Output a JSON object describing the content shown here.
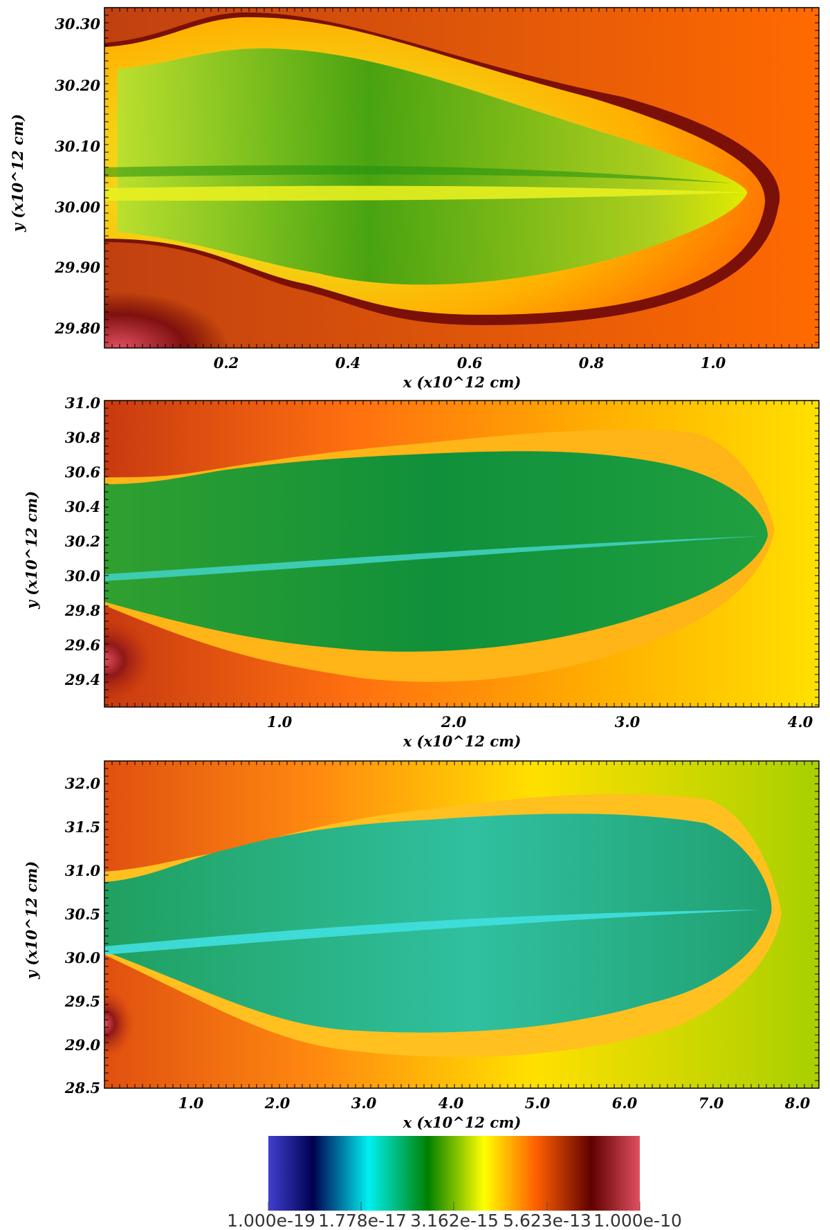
{
  "panels": [
    {
      "id": "panel1",
      "x_ticks": [
        "0.2",
        "0.4",
        "0.6",
        "0.8",
        "1.0"
      ],
      "y_ticks": [
        "30.30",
        "30.20",
        "30.10",
        "30.00",
        "29.90",
        "29.80"
      ],
      "x_label": "x  (x10^12 cm)",
      "y_label": "y  (x10^12 cm)"
    },
    {
      "id": "panel2",
      "x_ticks": [
        "1.0",
        "2.0",
        "3.0",
        "4.0"
      ],
      "y_ticks": [
        "31.0",
        "30.8",
        "30.6",
        "30.4",
        "30.2",
        "30.0",
        "29.8",
        "29.6",
        "29.4"
      ],
      "x_label": "x  (x10^12 cm)",
      "y_label": "y  (x10^12 cm)"
    },
    {
      "id": "panel3",
      "x_ticks": [
        "1.0",
        "2.0",
        "3.0",
        "4.0",
        "5.0",
        "6.0",
        "7.0",
        "8.0"
      ],
      "y_ticks": [
        "32.0",
        "31.5",
        "31.0",
        "30.5",
        "30.0",
        "29.5",
        "29.0",
        "28.5"
      ],
      "x_label": "x  (x10^12 cm)",
      "y_label": "y  (x10^12 cm)"
    }
  ],
  "colorbar": {
    "tick_labels": [
      "1.000e-19",
      "1.778e-17",
      "3.162e-15",
      "5.623e-13",
      "1.000e-10"
    ],
    "colors": [
      "#4040d0",
      "#000050",
      "#00f0f0",
      "#008000",
      "#ffff00",
      "#ff6000",
      "#600000",
      "#e05060"
    ]
  }
}
